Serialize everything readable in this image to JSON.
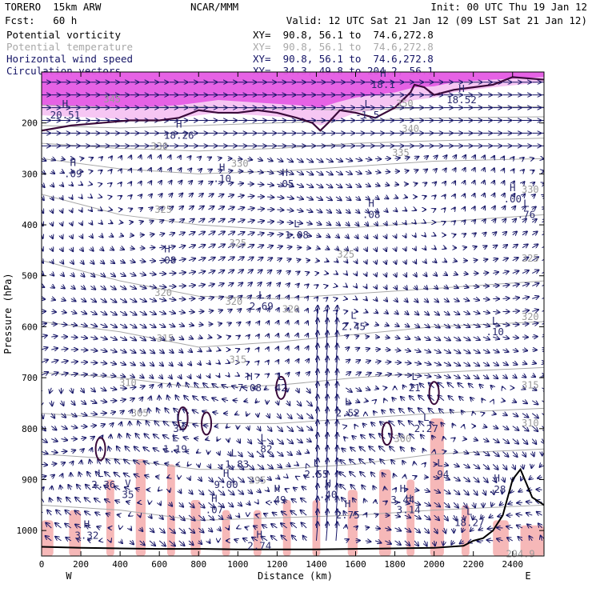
{
  "header": {
    "model": "TORERO  15km ARW",
    "org": "NCAR/MMM",
    "init": "Init: 00 UTC Thu 19 Jan 12",
    "fcst": "Fcst:   60 h",
    "valid": "Valid: 12 UTC Sat 21 Jan 12 (09 LST Sat 21 Jan 12)"
  },
  "fields": [
    {
      "name": "Potential vorticity",
      "color": "#000000",
      "xy": "XY=  90.8, 56.1 to  74.6,272.8"
    },
    {
      "name": "Potential temperature",
      "color": "#a8a8a8",
      "xy": "XY=  90.8, 56.1 to  74.6,272.8"
    },
    {
      "name": "Horizontal wind speed",
      "color": "#141466",
      "xy": "XY=  90.8, 56.1 to  74.6,272.8"
    },
    {
      "name": "Circulation vectors",
      "color": "#141466",
      "xy": "XY=  34.3, 49.8 to 204.2, 56.1"
    }
  ],
  "colors": {
    "pv_fill": "#e040e0",
    "pv_light": "#f4b8f0",
    "rh_fill": "#f6b8b8",
    "isentrope": "#a8a8a8",
    "vector": "#141466",
    "terrain": "#000000"
  },
  "chart_data": {
    "type": "cross-section",
    "xlabel": "Distance (km)",
    "ylabel": "Pressure (hPa)",
    "xlim": [
      0,
      2560
    ],
    "ylim": [
      1050,
      100
    ],
    "x_ticks": [
      0,
      200,
      400,
      600,
      800,
      1000,
      1200,
      1400,
      1600,
      1800,
      2000,
      2200,
      2400
    ],
    "y_ticks": [
      200,
      300,
      400,
      500,
      600,
      700,
      800,
      900,
      1000
    ],
    "left_end": "W",
    "right_end": "E",
    "isentropes": [
      {
        "theta": 350,
        "p": [
          165,
          170,
          168,
          172,
          175,
          170,
          168
        ]
      },
      {
        "theta": 340,
        "p": [
          205,
          210,
          205,
          200,
          195,
          190,
          188
        ]
      },
      {
        "theta": 335,
        "p": [
          240,
          250,
          255,
          250,
          240,
          235,
          230
        ]
      },
      {
        "theta": 330,
        "p": [
          270,
          290,
          300,
          295,
          285,
          275,
          270
        ]
      },
      {
        "theta": 325,
        "p": [
          340,
          380,
          400,
          410,
          405,
          395,
          380
        ]
      },
      {
        "theta": 320,
        "p": [
          470,
          510,
          540,
          545,
          535,
          525,
          510
        ]
      },
      {
        "theta": 315,
        "p": [
          590,
          610,
          640,
          630,
          615,
          600,
          590
        ]
      },
      {
        "theta": 310,
        "p": [
          690,
          700,
          720,
          715,
          700,
          690,
          680
        ]
      },
      {
        "theta": 305,
        "p": [
          770,
          780,
          790,
          790,
          780,
          770,
          760
        ]
      },
      {
        "theta": 300,
        "p": [
          850,
          860,
          880,
          880,
          870,
          850,
          840
        ]
      },
      {
        "theta": 295,
        "p": [
          950,
          960,
          980,
          975,
          970,
          960,
          950
        ]
      }
    ],
    "isentrope_x": [
      0,
      400,
      800,
      1200,
      1600,
      2000,
      2560
    ],
    "contour_labels": [
      {
        "text": "345",
        "x": 360,
        "p": 160
      },
      {
        "text": "350",
        "x": 1850,
        "p": 168
      },
      {
        "text": "340",
        "x": 1880,
        "p": 218
      },
      {
        "text": "335",
        "x": 1830,
        "p": 265
      },
      {
        "text": "330",
        "x": 600,
        "p": 252
      },
      {
        "text": "330",
        "x": 1010,
        "p": 286
      },
      {
        "text": "330",
        "x": 2490,
        "p": 337
      },
      {
        "text": "325",
        "x": 620,
        "p": 376
      },
      {
        "text": "325",
        "x": 1000,
        "p": 442
      },
      {
        "text": "325",
        "x": 1550,
        "p": 464
      },
      {
        "text": "325",
        "x": 2490,
        "p": 472
      },
      {
        "text": "320",
        "x": 620,
        "p": 540
      },
      {
        "text": "320",
        "x": 980,
        "p": 557
      },
      {
        "text": "320",
        "x": 1270,
        "p": 572
      },
      {
        "text": "320",
        "x": 2490,
        "p": 587
      },
      {
        "text": "315",
        "x": 630,
        "p": 629
      },
      {
        "text": "315",
        "x": 1000,
        "p": 671
      },
      {
        "text": "310",
        "x": 440,
        "p": 716
      },
      {
        "text": "305",
        "x": 500,
        "p": 776
      },
      {
        "text": "315",
        "x": 2490,
        "p": 721
      },
      {
        "text": "310",
        "x": 2490,
        "p": 796
      },
      {
        "text": "300",
        "x": 1840,
        "p": 826
      },
      {
        "text": "295",
        "x": 1100,
        "p": 908
      },
      {
        "text": "294.9",
        "x": 2440,
        "p": 1052
      }
    ],
    "extrema": [
      {
        "type": "H",
        "value": "20.51",
        "x": 120,
        "p": 185
      },
      {
        "type": "H",
        "value": "18.26",
        "x": 700,
        "p": 225
      },
      {
        "type": "H",
        "value": "18.1",
        "x": 1740,
        "p": 125
      },
      {
        "type": "H",
        "value": "18.52",
        "x": 2140,
        "p": 155
      },
      {
        "type": "L",
        "value": "-1.5",
        "x": 1660,
        "p": 185
      },
      {
        "type": "H",
        "value": ".09",
        "x": 160,
        "p": 300
      },
      {
        "type": "H",
        "value": ".10",
        "x": 920,
        "p": 310
      },
      {
        "type": "H",
        "value": ".05",
        "x": 1240,
        "p": 320
      },
      {
        "type": "H",
        "value": ".08",
        "x": 1680,
        "p": 380
      },
      {
        "type": "H",
        "value": ".00",
        "x": 2400,
        "p": 350
      },
      {
        "type": "L",
        "value": ".76",
        "x": 2470,
        "p": 380
      },
      {
        "type": "L",
        "value": "1.08",
        "x": 1300,
        "p": 420
      },
      {
        "type": "H",
        "value": ".08",
        "x": 640,
        "p": 470
      },
      {
        "type": "L",
        "value": "2.69",
        "x": 1120,
        "p": 560
      },
      {
        "type": "L",
        "value": "2.45",
        "x": 1590,
        "p": 600
      },
      {
        "type": "L",
        "value": ".10",
        "x": 2310,
        "p": 610
      },
      {
        "type": "H",
        "value": "7.08",
        "x": 1060,
        "p": 720
      },
      {
        "type": "L",
        "value": "42",
        "x": 1220,
        "p": 720
      },
      {
        "type": "L",
        "value": "21",
        "x": 1900,
        "p": 720
      },
      {
        "type": "L",
        "value": "2.52",
        "x": 1560,
        "p": 770
      },
      {
        "type": "L",
        "value": "2.27",
        "x": 1960,
        "p": 800
      },
      {
        "type": "L",
        "value": "34",
        "x": 700,
        "p": 800
      },
      {
        "type": "L",
        "value": "1.19",
        "x": 680,
        "p": 840
      },
      {
        "type": "L",
        "value": ".82",
        "x": 1130,
        "p": 840
      },
      {
        "type": "L",
        "value": "-1.83",
        "x": 980,
        "p": 870
      },
      {
        "type": "L",
        "value": "2.55",
        "x": 1400,
        "p": 890
      },
      {
        "type": "L",
        "value": ".94",
        "x": 2030,
        "p": 890
      },
      {
        "type": "L",
        "value": "-2.36",
        "x": 300,
        "p": 910
      },
      {
        "type": "V",
        "value": "35",
        "x": 440,
        "p": 930
      },
      {
        "type": "H",
        "value": "9.00",
        "x": 940,
        "p": 910
      },
      {
        "type": "H",
        "value": ".28",
        "x": 2320,
        "p": 920
      },
      {
        "type": "H",
        "value": ".49",
        "x": 1200,
        "p": 940
      },
      {
        "type": "H",
        "value": ".40",
        "x": 1460,
        "p": 930
      },
      {
        "type": "H",
        "value": "3.44",
        "x": 1840,
        "p": 940
      },
      {
        "type": "H",
        "value": ".07",
        "x": 880,
        "p": 960
      },
      {
        "type": "H",
        "value": "2.75",
        "x": 1560,
        "p": 970
      },
      {
        "type": "H",
        "value": "3.14",
        "x": 1870,
        "p": 960
      },
      {
        "type": "L",
        "value": "18.27",
        "x": 2180,
        "p": 985
      },
      {
        "type": "H",
        "value": "3.32",
        "x": 230,
        "p": 1010
      },
      {
        "type": "H",
        "value": "2.74",
        "x": 1110,
        "p": 1030
      }
    ],
    "terrain_p": [
      1032,
      1034,
      1035,
      1036,
      1036,
      1037,
      1037,
      1037,
      1036,
      1035,
      1034,
      1030,
      1020,
      1015,
      1000,
      970,
      900,
      880,
      935,
      950
    ],
    "terrain_x": [
      0,
      200,
      400,
      600,
      800,
      1000,
      1200,
      1400,
      1600,
      1800,
      2000,
      2150,
      2200,
      2250,
      2300,
      2350,
      2400,
      2440,
      2500,
      2560
    ]
  }
}
